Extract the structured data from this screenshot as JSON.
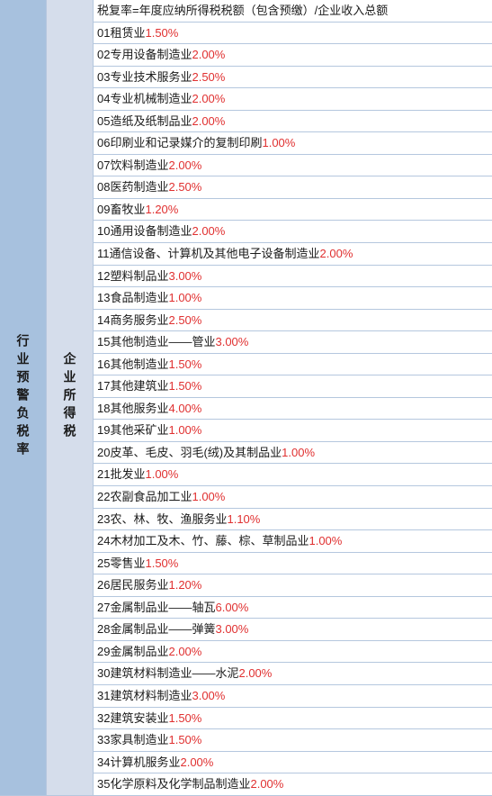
{
  "colors": {
    "bg_left": "#a7c1de",
    "bg_mid": "#d5ddeb",
    "border": "#b5c7de",
    "text": "#1a1a1a",
    "rate": "#e03030",
    "row_bg": "#ffffff"
  },
  "leftLabel": "行业预警负税率",
  "midLabel": "企业所得税",
  "headerRow": "税复率=年度应纳所得税税额（包含预缴）/企业收入总额",
  "rows": [
    {
      "num": "01",
      "label": "租赁业",
      "rate": "1.50%"
    },
    {
      "num": "02",
      "label": "专用设备制造业",
      "rate": "2.00%"
    },
    {
      "num": "03",
      "label": "专业技术服务业",
      "rate": "2.50%"
    },
    {
      "num": "04",
      "label": "专业机械制造业",
      "rate": "2.00%"
    },
    {
      "num": "05",
      "label": "造纸及纸制品业",
      "rate": "2.00%"
    },
    {
      "num": "06",
      "label": "印刷业和记录媒介的复制印刷",
      "rate": "1.00%"
    },
    {
      "num": "07",
      "label": "饮料制造业",
      "rate": "2.00%"
    },
    {
      "num": "08",
      "label": "医药制造业",
      "rate": "2.50%"
    },
    {
      "num": "09",
      "label": "畜牧业",
      "rate": "1.20%"
    },
    {
      "num": "10",
      "label": "通用设备制造业",
      "rate": "2.00%"
    },
    {
      "num": "11",
      "label": "通信设备、计算机及其他电子设备制造业",
      "rate": "2.00%"
    },
    {
      "num": "12",
      "label": "塑料制品业",
      "rate": "3.00%"
    },
    {
      "num": "13",
      "label": "食品制造业",
      "rate": "1.00%"
    },
    {
      "num": "14",
      "label": "商务服务业",
      "rate": "2.50%"
    },
    {
      "num": "15",
      "label": "其他制造业——管业",
      "rate": "3.00%"
    },
    {
      "num": "16",
      "label": "其他制造业",
      "rate": "1.50%"
    },
    {
      "num": "17",
      "label": "其他建筑业",
      "rate": "1.50%"
    },
    {
      "num": "18",
      "label": "其他服务业",
      "rate": "4.00%"
    },
    {
      "num": "19",
      "label": "其他采矿业",
      "rate": "1.00%"
    },
    {
      "num": "20",
      "label": "皮革、毛皮、羽毛(绒)及其制品业",
      "rate": "1.00%"
    },
    {
      "num": "21",
      "label": "批发业",
      "rate": "1.00%"
    },
    {
      "num": "22",
      "label": "农副食品加工业",
      "rate": "1.00%"
    },
    {
      "num": "23",
      "label": "农、林、牧、渔服务业",
      "rate": "1.10%"
    },
    {
      "num": "24",
      "label": "木材加工及木、竹、藤、棕、草制品业",
      "rate": "1.00%"
    },
    {
      "num": "25",
      "label": "零售业",
      "rate": "1.50%"
    },
    {
      "num": "26",
      "label": "居民服务业",
      "rate": "1.20%"
    },
    {
      "num": "27",
      "label": "金属制品业——轴瓦",
      "rate": "6.00%"
    },
    {
      "num": "28",
      "label": "金属制品业——弹簧",
      "rate": "3.00%"
    },
    {
      "num": "29",
      "label": "金属制品业",
      "rate": "2.00%",
      "nospace": true
    },
    {
      "num": "30",
      "label": "建筑材料制造业——水泥",
      "rate": "2.00%"
    },
    {
      "num": "31",
      "label": "建筑材料制造业",
      "rate": "3.00%"
    },
    {
      "num": "32",
      "label": "建筑安装业",
      "rate": "1.50%"
    },
    {
      "num": "33",
      "label": "家具制造业",
      "rate": "1.50%"
    },
    {
      "num": "34",
      "label": "计算机服务业",
      "rate": "2.00%"
    },
    {
      "num": "35",
      "label": "化学原料及化学制品制造业",
      "rate": "2.00%"
    }
  ],
  "fontsize": 13
}
